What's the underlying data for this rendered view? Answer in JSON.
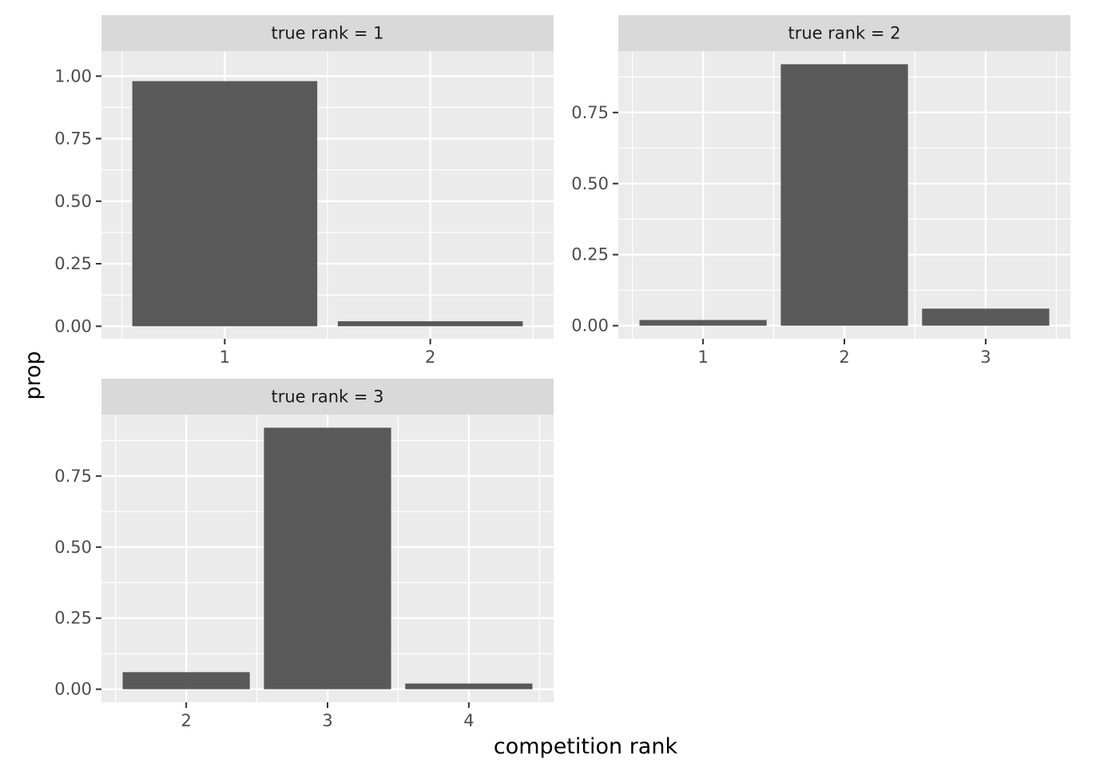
{
  "chart_data": {
    "type": "bar",
    "xlabel": "competition rank",
    "ylabel": "prop",
    "grid": true,
    "colors": {
      "bar": "#595959",
      "panel_bg": "#ebebeb",
      "strip_bg": "#d9d9d9",
      "grid": "#ffffff",
      "background": "#ffffff"
    },
    "panels": [
      {
        "strip": "true rank = 1",
        "categories": [
          "1",
          "2"
        ],
        "values": [
          0.98,
          0.02
        ],
        "ylim": [
          -0.05,
          1.1
        ],
        "yticks": [
          0.0,
          0.25,
          0.5,
          0.75,
          1.0
        ],
        "yticklabels": [
          "0.00",
          "0.25",
          "0.50",
          "0.75",
          "1.00"
        ]
      },
      {
        "strip": "true rank = 2",
        "categories": [
          "1",
          "2",
          "3"
        ],
        "values": [
          0.02,
          0.92,
          0.06
        ],
        "ylim": [
          -0.046,
          0.966
        ],
        "yticks": [
          0.0,
          0.25,
          0.5,
          0.75
        ],
        "yticklabels": [
          "0.00",
          "0.25",
          "0.50",
          "0.75"
        ]
      },
      {
        "strip": "true rank = 3",
        "categories": [
          "2",
          "3",
          "4"
        ],
        "values": [
          0.06,
          0.92,
          0.02
        ],
        "ylim": [
          -0.046,
          0.966
        ],
        "yticks": [
          0.0,
          0.25,
          0.5,
          0.75
        ],
        "yticklabels": [
          "0.00",
          "0.25",
          "0.50",
          "0.75"
        ]
      }
    ]
  }
}
